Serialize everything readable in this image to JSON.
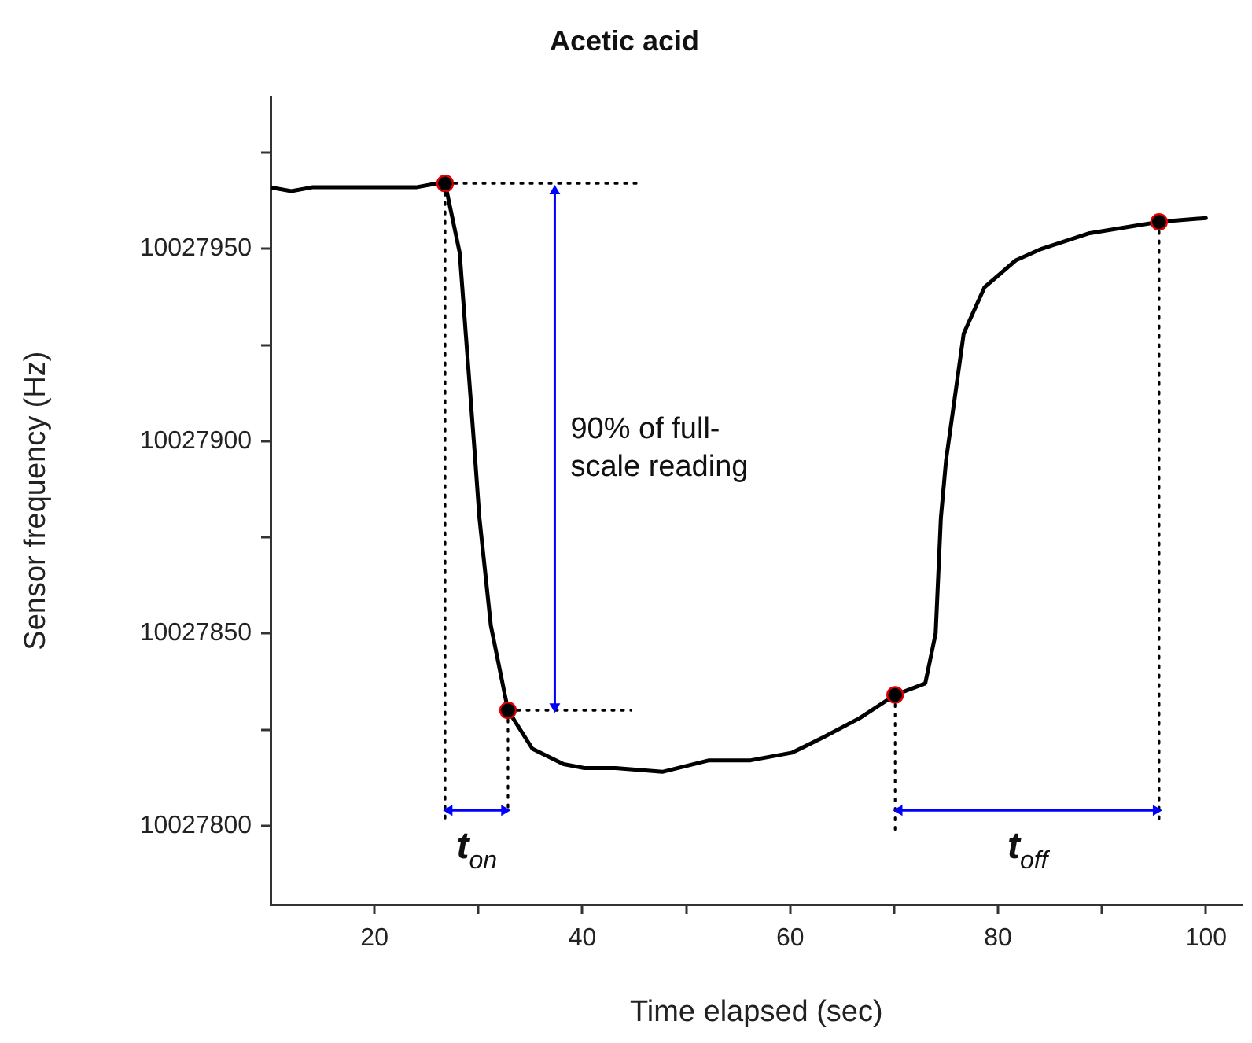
{
  "chart_data": {
    "type": "line",
    "title": "Acetic acid",
    "xlabel": "Time elapsed (sec)",
    "ylabel": "Sensor frequency (Hz)",
    "xlim": [
      10,
      103.5
    ],
    "ylim": [
      10027779.5,
      10027989.5
    ],
    "xticks": [
      20,
      {
        "value": 30,
        "label": null
      },
      40,
      {
        "value": 50,
        "label": null
      },
      60,
      {
        "value": 70,
        "label": null
      },
      80,
      {
        "value": 90,
        "label": null
      },
      100
    ],
    "yticks": [
      10027800,
      {
        "value": 10027825,
        "label": null
      },
      10027850,
      {
        "value": 10027875,
        "label": null
      },
      10027900,
      {
        "value": 10027925,
        "label": null
      },
      10027950,
      {
        "value": 10027975,
        "label": null
      }
    ],
    "grid": false,
    "legend": false,
    "series": [
      {
        "color": "#000000",
        "line_style": "solid",
        "x": [
          10,
          12,
          14,
          16,
          18,
          20,
          22,
          24,
          26,
          26.8,
          28.2,
          29.7,
          30.1,
          31.2,
          32.85,
          35.2,
          38.2,
          40.2,
          43.2,
          47.7,
          52.2,
          56.2,
          60.2,
          63.2,
          66.7,
          70.1,
          73,
          74,
          74.5,
          75,
          76.7,
          78.7,
          81.7,
          84.2,
          88.7,
          93.2,
          95.5,
          100
        ],
        "values": [
          10027966,
          10027965,
          10027966,
          10027966,
          10027966,
          10027966,
          10027966,
          10027966,
          10027967,
          10027967,
          10027949,
          10027895,
          10027880,
          10027852,
          10027830,
          10027820,
          10027816,
          10027815,
          10027815,
          10027814,
          10027817,
          10027817,
          10027819,
          10027823,
          10027828,
          10027834,
          10027837,
          10027850,
          10027880,
          10027895,
          10027928,
          10027940,
          10027947,
          10027950,
          10027954,
          10027956,
          10027957,
          10027958
        ]
      },
      {
        "type": "scatter",
        "color": "#000000",
        "marker": "circle",
        "x": [
          26.8,
          32.85,
          70.1,
          95.5
        ],
        "values": [
          10027967,
          10027830,
          10027834,
          10027957
        ]
      },
      {
        "type": "line",
        "color": "#000000",
        "line_style": "dotted",
        "x": [
          26.8,
          45.2
        ],
        "values": [
          10027967,
          10027967
        ]
      },
      {
        "type": "line",
        "color": "#000000",
        "line_style": "dotted",
        "x": [
          32.85,
          44.7
        ],
        "values": [
          10027830,
          10027830
        ]
      },
      {
        "type": "line",
        "color": "#000000",
        "line_style": "dotted",
        "x": [
          26.8,
          26.8
        ],
        "values": [
          10027967,
          10027801
        ]
      },
      {
        "type": "line",
        "color": "#000000",
        "line_style": "dotted",
        "x": [
          32.85,
          32.85
        ],
        "values": [
          10027830,
          10027804
        ]
      },
      {
        "type": "line",
        "color": "#000000",
        "line_style": "dotted",
        "x": [
          70.1,
          70.1
        ],
        "values": [
          10027834,
          10027798
        ]
      },
      {
        "type": "line",
        "color": "#000000",
        "line_style": "dotted",
        "x": [
          95.5,
          95.5
        ],
        "values": [
          10027957,
          10027800
        ]
      },
      {
        "type": "line",
        "color": "#0000ff",
        "line_style": "solid",
        "marker": "triangle",
        "x": [
          37.35,
          37.35
        ],
        "values": [
          10027965,
          10027831
        ]
      },
      {
        "type": "line",
        "color": "#0000ff",
        "line_style": "solid",
        "marker": "triangle",
        "x": [
          27.2,
          32.5
        ],
        "values": [
          10027804,
          10027804
        ]
      },
      {
        "type": "line",
        "color": "#0000ff",
        "line_style": "solid",
        "marker": "triangle",
        "x": [
          70.5,
          95.2
        ],
        "values": [
          10027804,
          10027804
        ]
      }
    ],
    "annotations": [
      "90% of full-scale reading",
      "t$_{on}$",
      "t$_{off}$"
    ]
  }
}
